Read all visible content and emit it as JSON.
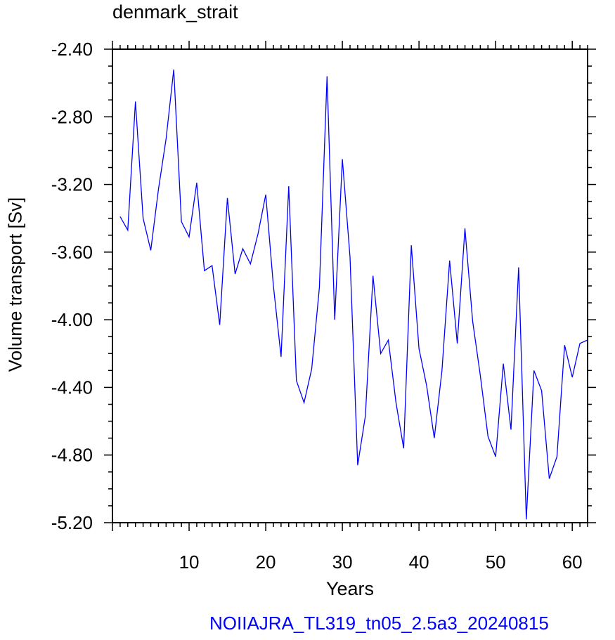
{
  "title": "denmark_strait",
  "footer": "NOIIAJRA_TL319_tn05_2.5a3_20240815",
  "chart_data": {
    "type": "line",
    "xlabel": "Years",
    "ylabel": "Volume transport [Sv]",
    "xlim": [
      0,
      62
    ],
    "ylim": [
      -5.2,
      -2.4
    ],
    "x_ticks": [
      10,
      20,
      30,
      40,
      50,
      60
    ],
    "y_ticks": [
      "-2.40",
      "-2.80",
      "-3.20",
      "-3.60",
      "-4.00",
      "-4.40",
      "-4.80",
      "-5.20"
    ],
    "line_color": "#0000ff",
    "grid": false,
    "series": [
      {
        "x": [
          1,
          2,
          3,
          4,
          5,
          6,
          7,
          8,
          9,
          10,
          11,
          12,
          13,
          14,
          15,
          16,
          17,
          18,
          19,
          20,
          21,
          22,
          23,
          24,
          25,
          26,
          27,
          28,
          29,
          30,
          31,
          32,
          33,
          34,
          35,
          36,
          37,
          38,
          39,
          40,
          41,
          42,
          43,
          44,
          45,
          46,
          47,
          48,
          49,
          50,
          51,
          52,
          53,
          54,
          55,
          56,
          57,
          58,
          59,
          60,
          61,
          62
        ],
        "values": [
          -3.39,
          -3.47,
          -2.71,
          -3.4,
          -3.59,
          -3.23,
          -2.93,
          -2.52,
          -3.42,
          -3.51,
          -3.19,
          -3.71,
          -3.68,
          -4.03,
          -3.28,
          -3.73,
          -3.58,
          -3.67,
          -3.49,
          -3.26,
          -3.8,
          -4.22,
          -3.21,
          -4.36,
          -4.49,
          -4.29,
          -3.81,
          -2.56,
          -4.0,
          -3.05,
          -3.63,
          -4.86,
          -4.57,
          -3.74,
          -4.2,
          -4.12,
          -4.49,
          -4.76,
          -3.56,
          -4.17,
          -4.39,
          -4.7,
          -4.3,
          -3.65,
          -4.14,
          -3.46,
          -4.01,
          -4.33,
          -4.69,
          -4.81,
          -4.26,
          -4.65,
          -3.69,
          -5.18,
          -4.3,
          -4.42,
          -4.94,
          -4.81,
          -4.15,
          -4.34,
          -4.14,
          -4.12
        ]
      }
    ]
  }
}
